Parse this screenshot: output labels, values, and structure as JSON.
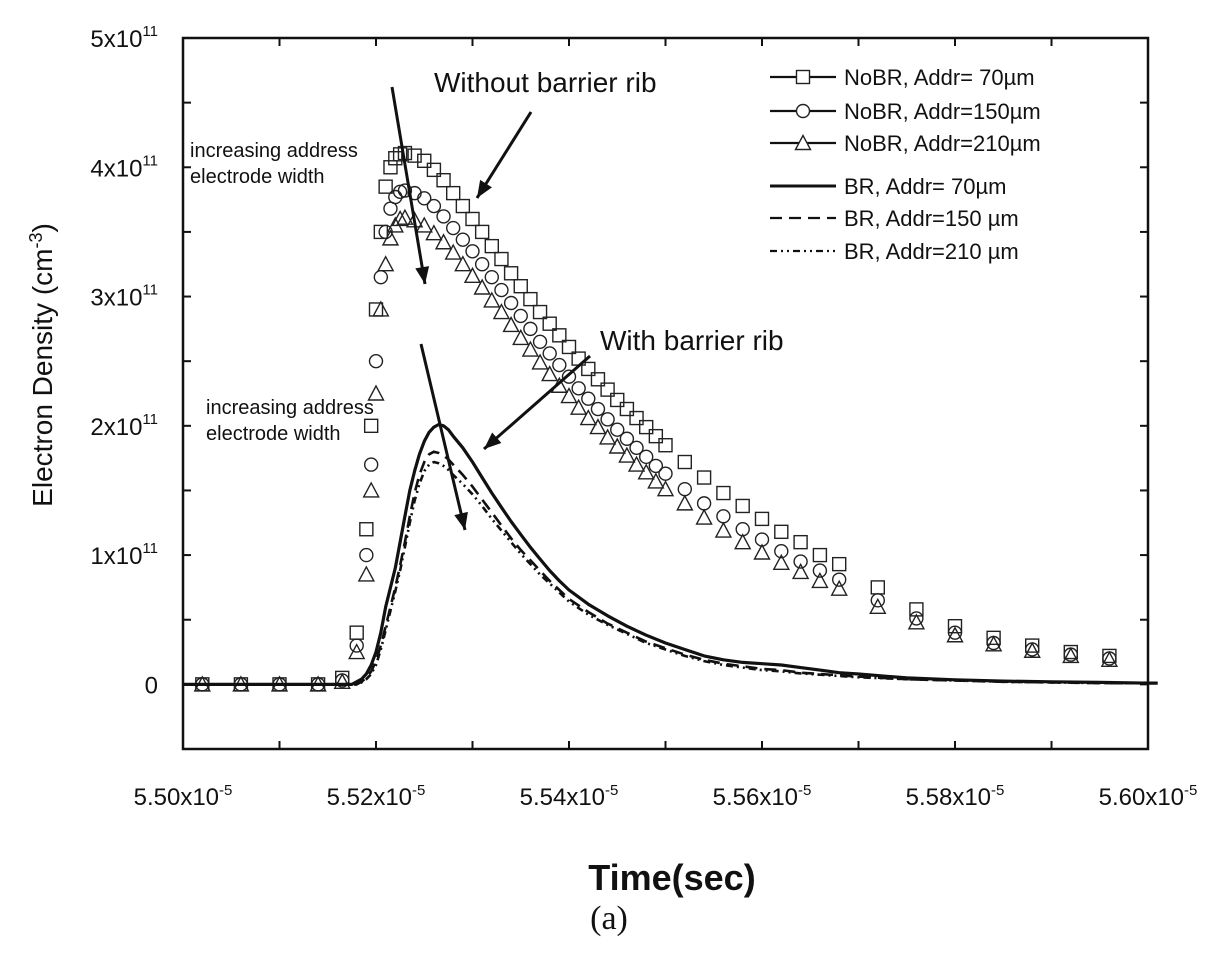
{
  "caption": "(a)",
  "chart_data": {
    "type": "scatter",
    "xlabel": "Time(sec)",
    "ylabel": "Electron Density (cm",
    "ylabel_sup": "-3",
    "ylabel_close": ")",
    "xlim": [
      5.5e-05,
      5.6e-05
    ],
    "ylim": [
      -50000000000,
      500000000000
    ],
    "grid": false,
    "legend_position": "top-right",
    "x_ticks": [
      {
        "value": 5.5e-05,
        "mant": "5.50x10",
        "exp": "-5"
      },
      {
        "value": 5.52e-05,
        "mant": "5.52x10",
        "exp": "-5"
      },
      {
        "value": 5.54e-05,
        "mant": "5.54x10",
        "exp": "-5"
      },
      {
        "value": 5.56e-05,
        "mant": "5.56x10",
        "exp": "-5"
      },
      {
        "value": 5.58e-05,
        "mant": "5.58x10",
        "exp": "-5"
      },
      {
        "value": 5.6e-05,
        "mant": "5.60x10",
        "exp": "-5"
      }
    ],
    "y_ticks": [
      {
        "value": 0,
        "mant": "0",
        "exp": ""
      },
      {
        "value": 100000000000,
        "mant": "1x10",
        "exp": "11"
      },
      {
        "value": 200000000000,
        "mant": "2x10",
        "exp": "11"
      },
      {
        "value": 300000000000,
        "mant": "3x10",
        "exp": "11"
      },
      {
        "value": 400000000000,
        "mant": "4x10",
        "exp": "11"
      },
      {
        "value": 500000000000,
        "mant": "5x10",
        "exp": "11"
      }
    ],
    "legend": [
      {
        "series": "NoBR, Addr= 70µm",
        "label": "NoBR, Addr= 70µm"
      },
      {
        "series": "NoBR, Addr=150µm",
        "label": "NoBR, Addr=150µm"
      },
      {
        "series": "NoBR, Addr=210µm",
        "label": "NoBR, Addr=210µm"
      },
      {
        "series": "BR, Addr= 70µm",
        "label": "BR,     Addr=  70µm"
      },
      {
        "series": "BR, Addr=150 µm",
        "label": "BR,     Addr=150 µm"
      },
      {
        "series": "BR, Addr=210 µm",
        "label": "BR,     Addr=210 µm"
      }
    ],
    "annotations": [
      {
        "text": "Without barrier rib"
      },
      {
        "text": "With barrier rib"
      },
      {
        "text": "increasing address electrode width",
        "line1": "increasing address",
        "line2": "electrode width"
      },
      {
        "text": "increasing address electrode width",
        "line1": "increasing address",
        "line2": "electrode width"
      }
    ],
    "series": [
      {
        "name": "NoBR, Addr= 70µm",
        "style": "markers",
        "marker": "square",
        "x": [
          5.502e-05,
          5.506e-05,
          5.51e-05,
          5.514e-05,
          5.5165e-05,
          5.518e-05,
          5.519e-05,
          5.5195e-05,
          5.52e-05,
          5.5205e-05,
          5.521e-05,
          5.5215e-05,
          5.522e-05,
          5.5225e-05,
          5.523e-05,
          5.524e-05,
          5.525e-05,
          5.526e-05,
          5.527e-05,
          5.528e-05,
          5.529e-05,
          5.53e-05,
          5.531e-05,
          5.532e-05,
          5.533e-05,
          5.534e-05,
          5.535e-05,
          5.536e-05,
          5.537e-05,
          5.538e-05,
          5.539e-05,
          5.54e-05,
          5.541e-05,
          5.542e-05,
          5.543e-05,
          5.544e-05,
          5.545e-05,
          5.546e-05,
          5.547e-05,
          5.548e-05,
          5.549e-05,
          5.55e-05,
          5.552e-05,
          5.554e-05,
          5.556e-05,
          5.558e-05,
          5.56e-05,
          5.562e-05,
          5.564e-05,
          5.566e-05,
          5.568e-05,
          5.572e-05,
          5.576e-05,
          5.58e-05,
          5.584e-05,
          5.588e-05,
          5.592e-05,
          5.596e-05
        ],
        "y": [
          0,
          0,
          0,
          0,
          5000000000,
          40000000000,
          120000000000,
          200000000000,
          290000000000,
          350000000000,
          385000000000,
          400000000000,
          407000000000,
          410000000000,
          411000000000,
          409000000000,
          405000000000,
          398000000000,
          390000000000,
          380000000000,
          370000000000,
          360000000000,
          350000000000,
          339000000000,
          329000000000,
          318000000000,
          308000000000,
          298000000000,
          288000000000,
          279000000000,
          270000000000,
          261000000000,
          252000000000,
          244000000000,
          236000000000,
          228000000000,
          220000000000,
          213000000000,
          206000000000,
          199000000000,
          192000000000,
          185000000000,
          172000000000,
          160000000000,
          148000000000,
          138000000000,
          128000000000,
          118000000000,
          110000000000,
          100000000000,
          93000000000,
          75000000000,
          58000000000,
          45000000000,
          36000000000,
          30000000000,
          25000000000,
          22000000000
        ]
      },
      {
        "name": "NoBR, Addr=150µm",
        "style": "markers",
        "marker": "circle",
        "x": [
          5.502e-05,
          5.506e-05,
          5.51e-05,
          5.514e-05,
          5.5165e-05,
          5.518e-05,
          5.519e-05,
          5.5195e-05,
          5.52e-05,
          5.5205e-05,
          5.521e-05,
          5.5215e-05,
          5.522e-05,
          5.5225e-05,
          5.523e-05,
          5.524e-05,
          5.525e-05,
          5.526e-05,
          5.527e-05,
          5.528e-05,
          5.529e-05,
          5.53e-05,
          5.531e-05,
          5.532e-05,
          5.533e-05,
          5.534e-05,
          5.535e-05,
          5.536e-05,
          5.537e-05,
          5.538e-05,
          5.539e-05,
          5.54e-05,
          5.541e-05,
          5.542e-05,
          5.543e-05,
          5.544e-05,
          5.545e-05,
          5.546e-05,
          5.547e-05,
          5.548e-05,
          5.549e-05,
          5.55e-05,
          5.552e-05,
          5.554e-05,
          5.556e-05,
          5.558e-05,
          5.56e-05,
          5.562e-05,
          5.564e-05,
          5.566e-05,
          5.568e-05,
          5.572e-05,
          5.576e-05,
          5.58e-05,
          5.584e-05,
          5.588e-05,
          5.592e-05,
          5.596e-05
        ],
        "y": [
          0,
          0,
          0,
          0,
          3000000000,
          30000000000,
          100000000000,
          170000000000,
          250000000000,
          315000000000,
          350000000000,
          368000000000,
          377000000000,
          381000000000,
          382000000000,
          380000000000,
          376000000000,
          370000000000,
          362000000000,
          353000000000,
          344000000000,
          335000000000,
          325000000000,
          315000000000,
          305000000000,
          295000000000,
          285000000000,
          275000000000,
          265000000000,
          256000000000,
          247000000000,
          238000000000,
          229000000000,
          221000000000,
          213000000000,
          205000000000,
          197000000000,
          190000000000,
          183000000000,
          176000000000,
          169000000000,
          163000000000,
          151000000000,
          140000000000,
          130000000000,
          120000000000,
          112000000000,
          103000000000,
          95000000000,
          88000000000,
          81000000000,
          65000000000,
          51000000000,
          40000000000,
          32000000000,
          27000000000,
          23000000000,
          20000000000
        ]
      },
      {
        "name": "NoBR, Addr=210µm",
        "style": "markers",
        "marker": "triangle",
        "x": [
          5.502e-05,
          5.506e-05,
          5.51e-05,
          5.514e-05,
          5.5165e-05,
          5.518e-05,
          5.519e-05,
          5.5195e-05,
          5.52e-05,
          5.5205e-05,
          5.521e-05,
          5.5215e-05,
          5.522e-05,
          5.5225e-05,
          5.523e-05,
          5.524e-05,
          5.525e-05,
          5.526e-05,
          5.527e-05,
          5.528e-05,
          5.529e-05,
          5.53e-05,
          5.531e-05,
          5.532e-05,
          5.533e-05,
          5.534e-05,
          5.535e-05,
          5.536e-05,
          5.537e-05,
          5.538e-05,
          5.539e-05,
          5.54e-05,
          5.541e-05,
          5.542e-05,
          5.543e-05,
          5.544e-05,
          5.545e-05,
          5.546e-05,
          5.547e-05,
          5.548e-05,
          5.549e-05,
          5.55e-05,
          5.552e-05,
          5.554e-05,
          5.556e-05,
          5.558e-05,
          5.56e-05,
          5.562e-05,
          5.564e-05,
          5.566e-05,
          5.568e-05,
          5.572e-05,
          5.576e-05,
          5.58e-05,
          5.584e-05,
          5.588e-05,
          5.592e-05,
          5.596e-05
        ],
        "y": [
          0,
          0,
          0,
          0,
          2000000000,
          25000000000,
          85000000000,
          150000000000,
          225000000000,
          290000000000,
          325000000000,
          345000000000,
          355000000000,
          360000000000,
          361000000000,
          359000000000,
          355000000000,
          349000000000,
          342000000000,
          334000000000,
          325000000000,
          316000000000,
          307000000000,
          297000000000,
          288000000000,
          278000000000,
          268000000000,
          259000000000,
          249000000000,
          240000000000,
          231000000000,
          223000000000,
          214000000000,
          206000000000,
          199000000000,
          191000000000,
          184000000000,
          177000000000,
          170000000000,
          164000000000,
          157000000000,
          151000000000,
          140000000000,
          129000000000,
          119000000000,
          110000000000,
          102000000000,
          94000000000,
          87000000000,
          80000000000,
          74000000000,
          60000000000,
          48000000000,
          38000000000,
          31000000000,
          26000000000,
          22000000000,
          19000000000
        ]
      },
      {
        "name": "BR, Addr= 70µm",
        "style": "solid",
        "x": [
          5.5e-05,
          5.514e-05,
          5.5175e-05,
          5.518e-05,
          5.5185e-05,
          5.519e-05,
          5.5195e-05,
          5.52e-05,
          5.5205e-05,
          5.521e-05,
          5.5215e-05,
          5.522e-05,
          5.5225e-05,
          5.523e-05,
          5.5235e-05,
          5.524e-05,
          5.5245e-05,
          5.525e-05,
          5.5255e-05,
          5.526e-05,
          5.5265e-05,
          5.527e-05,
          5.5275e-05,
          5.528e-05,
          5.529e-05,
          5.53e-05,
          5.531e-05,
          5.532e-05,
          5.533e-05,
          5.534e-05,
          5.535e-05,
          5.536e-05,
          5.537e-05,
          5.538e-05,
          5.539e-05,
          5.54e-05,
          5.542e-05,
          5.544e-05,
          5.546e-05,
          5.548e-05,
          5.55e-05,
          5.552e-05,
          5.554e-05,
          5.556e-05,
          5.558e-05,
          5.56e-05,
          5.562e-05,
          5.564e-05,
          5.566e-05,
          5.568e-05,
          5.57e-05,
          5.575e-05,
          5.58e-05,
          5.585e-05,
          5.59e-05,
          5.595e-05,
          5.6e-05,
          5.601e-05
        ],
        "y": [
          0,
          0,
          0,
          2000000000,
          4000000000,
          8000000000,
          15000000000,
          25000000000,
          40000000000,
          60000000000,
          75000000000,
          90000000000,
          110000000000,
          130000000000,
          150000000000,
          165000000000,
          178000000000,
          188000000000,
          195000000000,
          199000000000,
          201000000000,
          200000000000,
          197000000000,
          192000000000,
          183000000000,
          172000000000,
          160000000000,
          148000000000,
          137000000000,
          126000000000,
          116000000000,
          106000000000,
          97000000000,
          88000000000,
          80000000000,
          73000000000,
          62000000000,
          53000000000,
          45000000000,
          38000000000,
          32000000000,
          27000000000,
          22000000000,
          19000000000,
          17000000000,
          16000000000,
          15000000000,
          13000000000,
          11000000000,
          9000000000,
          8000000000,
          5000000000,
          3500000000,
          2500000000,
          2000000000,
          1500000000,
          1000000000,
          1000000000
        ]
      },
      {
        "name": "BR, Addr=150 µm",
        "style": "dashed",
        "x": [
          5.5e-05,
          5.514e-05,
          5.518e-05,
          5.5185e-05,
          5.519e-05,
          5.5195e-05,
          5.52e-05,
          5.5205e-05,
          5.521e-05,
          5.5215e-05,
          5.522e-05,
          5.5225e-05,
          5.523e-05,
          5.5235e-05,
          5.524e-05,
          5.5245e-05,
          5.525e-05,
          5.5255e-05,
          5.526e-05,
          5.5265e-05,
          5.527e-05,
          5.5275e-05,
          5.528e-05,
          5.529e-05,
          5.53e-05,
          5.531e-05,
          5.532e-05,
          5.533e-05,
          5.534e-05,
          5.535e-05,
          5.536e-05,
          5.537e-05,
          5.538e-05,
          5.539e-05,
          5.54e-05,
          5.542e-05,
          5.544e-05,
          5.546e-05,
          5.548e-05,
          5.55e-05,
          5.552e-05,
          5.554e-05,
          5.556e-05,
          5.558e-05,
          5.56e-05,
          5.562e-05,
          5.564e-05,
          5.566e-05,
          5.568e-05,
          5.57e-05,
          5.575e-05,
          5.58e-05,
          5.585e-05,
          5.59e-05,
          5.595e-05,
          5.6e-05
        ],
        "y": [
          0,
          0,
          0,
          2000000000,
          5000000000,
          10000000000,
          18000000000,
          30000000000,
          45000000000,
          60000000000,
          75000000000,
          92000000000,
          110000000000,
          130000000000,
          148000000000,
          162000000000,
          172000000000,
          178000000000,
          180000000000,
          179000000000,
          177000000000,
          174000000000,
          170000000000,
          162000000000,
          153000000000,
          143000000000,
          133000000000,
          123000000000,
          113000000000,
          104000000000,
          96000000000,
          88000000000,
          80000000000,
          73000000000,
          66000000000,
          56000000000,
          47000000000,
          40000000000,
          33000000000,
          28000000000,
          23000000000,
          19000000000,
          16000000000,
          14000000000,
          12000000000,
          11000000000,
          9000000000,
          8000000000,
          7000000000,
          6000000000,
          4000000000,
          3000000000,
          2000000000,
          1500000000,
          1000000000,
          800000000
        ]
      },
      {
        "name": "BR, Addr=210 µm",
        "style": "dashdot",
        "x": [
          5.5e-05,
          5.514e-05,
          5.518e-05,
          5.5185e-05,
          5.519e-05,
          5.5195e-05,
          5.52e-05,
          5.5205e-05,
          5.521e-05,
          5.5215e-05,
          5.522e-05,
          5.5225e-05,
          5.523e-05,
          5.5235e-05,
          5.524e-05,
          5.5245e-05,
          5.525e-05,
          5.5255e-05,
          5.526e-05,
          5.5265e-05,
          5.527e-05,
          5.5275e-05,
          5.528e-05,
          5.529e-05,
          5.53e-05,
          5.531e-05,
          5.532e-05,
          5.533e-05,
          5.534e-05,
          5.535e-05,
          5.536e-05,
          5.537e-05,
          5.538e-05,
          5.539e-05,
          5.54e-05,
          5.542e-05,
          5.544e-05,
          5.546e-05,
          5.548e-05,
          5.55e-05,
          5.552e-05,
          5.554e-05,
          5.556e-05,
          5.558e-05,
          5.56e-05,
          5.562e-05,
          5.564e-05,
          5.566e-05,
          5.568e-05,
          5.57e-05,
          5.575e-05,
          5.58e-05,
          5.585e-05,
          5.59e-05,
          5.595e-05,
          5.6e-05
        ],
        "y": [
          0,
          0,
          0,
          1500000000,
          4000000000,
          8000000000,
          15000000000,
          27000000000,
          42000000000,
          57000000000,
          72000000000,
          88000000000,
          106000000000,
          125000000000,
          142000000000,
          155000000000,
          165000000000,
          170000000000,
          172000000000,
          171000000000,
          169000000000,
          166000000000,
          162000000000,
          155000000000,
          147000000000,
          138000000000,
          128000000000,
          119000000000,
          110000000000,
          101000000000,
          93000000000,
          85000000000,
          78000000000,
          71000000000,
          64000000000,
          54000000000,
          46000000000,
          39000000000,
          32000000000,
          27000000000,
          22000000000,
          18000000000,
          15000000000,
          13000000000,
          11000000000,
          10000000000,
          8500000000,
          7500000000,
          6500000000,
          5500000000,
          4000000000,
          3000000000,
          2000000000,
          1500000000,
          1000000000,
          800000000
        ]
      }
    ]
  }
}
